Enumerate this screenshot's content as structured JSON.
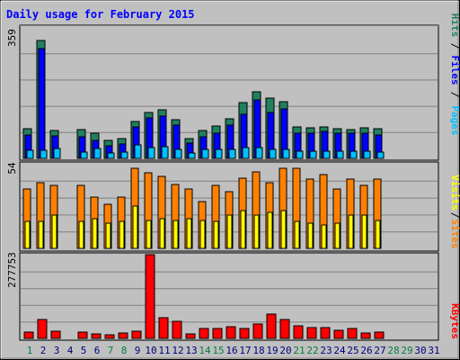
{
  "chart_data": [
    {
      "type": "bar",
      "title": "Daily usage for February 2015",
      "ymax_label": "359",
      "ylim": [
        0,
        359
      ],
      "grid": true,
      "series": [
        {
          "name": "Hits",
          "color": "#208060",
          "values": [
            80,
            322,
            75,
            0,
            78,
            68,
            48,
            55,
            101,
            126,
            133,
            106,
            55,
            77,
            89,
            109,
            153,
            183,
            164,
            155,
            87,
            84,
            87,
            80,
            79,
            83,
            81,
            0,
            0,
            0,
            0
          ]
        },
        {
          "name": "Files",
          "color": "#0000ff",
          "values": [
            65,
            300,
            62,
            0,
            60,
            50,
            35,
            40,
            85,
            110,
            115,
            92,
            42,
            60,
            70,
            90,
            120,
            160,
            125,
            135,
            70,
            69,
            73,
            69,
            68,
            70,
            63,
            0,
            0,
            0,
            0
          ]
        },
        {
          "name": "Pages",
          "color": "#00c0ff",
          "values": [
            22,
            22,
            26,
            0,
            18,
            26,
            15,
            18,
            36,
            30,
            32,
            24,
            15,
            24,
            24,
            25,
            30,
            30,
            24,
            24,
            20,
            20,
            20,
            20,
            20,
            20,
            18,
            0,
            0,
            0,
            0
          ]
        }
      ]
    },
    {
      "type": "bar",
      "ymax_label": "54",
      "ylim": [
        0,
        54
      ],
      "grid": true,
      "series": [
        {
          "name": "Sites",
          "color": "#ff8000",
          "values": [
            38,
            42,
            40,
            0,
            40,
            33,
            28,
            33,
            51,
            48,
            46,
            41,
            38,
            30,
            40,
            36,
            45,
            49,
            42,
            51,
            51,
            44,
            47,
            38,
            44,
            40,
            44,
            0,
            0,
            0,
            0
          ]
        },
        {
          "name": "Visits",
          "color": "#ffff00",
          "values": [
            17,
            17,
            21,
            0,
            17,
            19,
            16,
            17,
            27,
            18,
            19,
            18,
            19,
            18,
            17,
            21,
            24,
            21,
            23,
            24,
            17,
            16,
            15,
            16,
            21,
            21,
            18,
            0,
            0,
            0,
            0
          ]
        }
      ]
    },
    {
      "type": "bar",
      "ymax_label": "277753",
      "ylim": [
        0,
        277753
      ],
      "grid": true,
      "series": [
        {
          "name": "KBytes",
          "color": "#ff0000",
          "values": [
            20000,
            62000,
            23000,
            0,
            22000,
            15000,
            13000,
            17000,
            24000,
            277753,
            70000,
            56000,
            16000,
            33000,
            33000,
            39000,
            33000,
            47000,
            82000,
            62000,
            41000,
            36000,
            36000,
            27000,
            33000,
            18000,
            21000,
            0,
            0,
            0,
            0
          ]
        }
      ]
    }
  ],
  "days": [
    "1",
    "2",
    "3",
    "4",
    "5",
    "6",
    "7",
    "8",
    "9",
    "10",
    "11",
    "12",
    "13",
    "14",
    "15",
    "16",
    "17",
    "18",
    "19",
    "20",
    "21",
    "22",
    "23",
    "24",
    "25",
    "26",
    "27",
    "28",
    "29",
    "30",
    "31"
  ],
  "weekend_days": [
    1,
    7,
    8,
    14,
    15,
    21,
    22,
    28,
    29
  ],
  "axis_color_normal": "#000080",
  "axis_color_weekend": "#008040"
}
